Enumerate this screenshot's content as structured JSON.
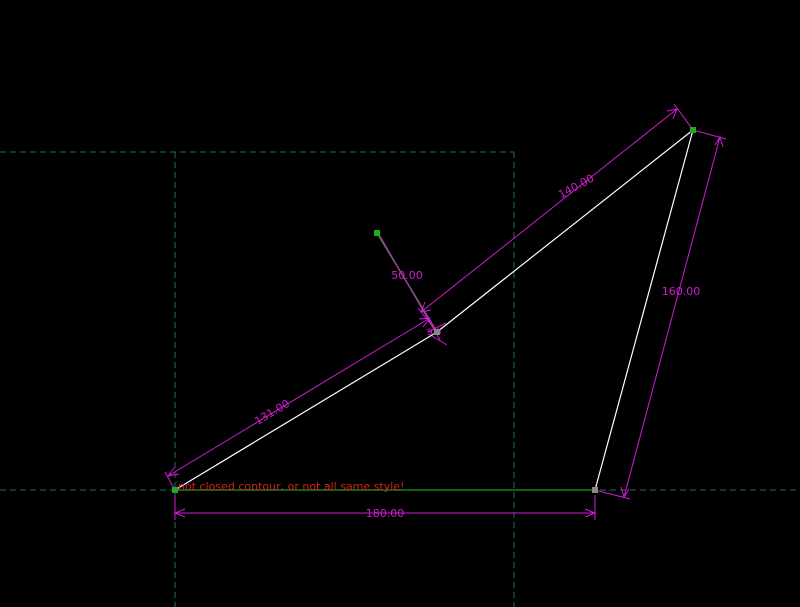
{
  "colors": {
    "background": "#000000",
    "axis": "#1f6b6b",
    "geometry": "#ffffff",
    "dimension": "#d11cd1",
    "construction": "#1a9a1a",
    "point": "#22aa22",
    "error": "#d42020"
  },
  "dimensions": {
    "bottom": "180.00",
    "left": "131.00",
    "top": "140.00",
    "right": "160.00",
    "construction": "50.00",
    "small": "9.0"
  },
  "messages": {
    "error": "not closed contour, or not all same style!"
  },
  "icons": {
    "point_marker": "point-icon"
  }
}
